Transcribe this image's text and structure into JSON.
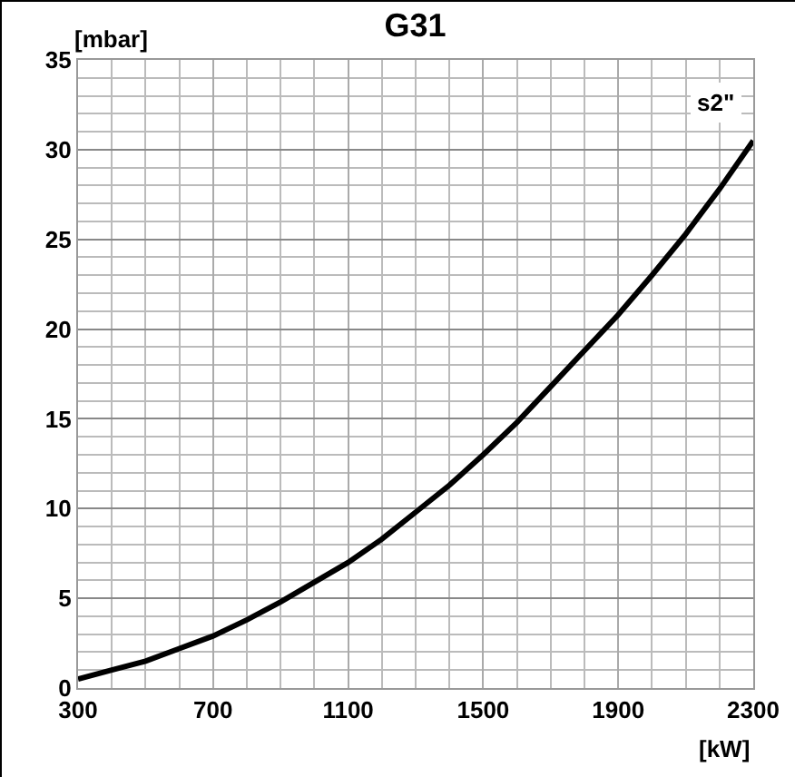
{
  "chart_data": {
    "type": "line",
    "title": "G31",
    "xlabel": "[kW]",
    "ylabel": "[mbar]",
    "x": [
      300,
      400,
      500,
      600,
      700,
      800,
      900,
      1000,
      1100,
      1200,
      1300,
      1400,
      1500,
      1600,
      1700,
      1800,
      1900,
      2000,
      2100,
      2200,
      2300
    ],
    "series": [
      {
        "name": "s2\"",
        "color": "#000000",
        "values": [
          0.5,
          1.0,
          1.5,
          2.2,
          2.9,
          3.8,
          4.8,
          5.9,
          7.0,
          8.3,
          9.8,
          11.3,
          13.0,
          14.8,
          16.8,
          18.8,
          20.8,
          23.0,
          25.3,
          27.8,
          30.5
        ]
      }
    ],
    "xlim": [
      300,
      2300
    ],
    "xticks": [
      300,
      700,
      1100,
      1500,
      1900,
      2300
    ],
    "ylim": [
      0,
      35
    ],
    "yticks": [
      0,
      5,
      10,
      15,
      20,
      25,
      30,
      35
    ],
    "grid": true,
    "marker": "none",
    "line_style": "solid"
  }
}
